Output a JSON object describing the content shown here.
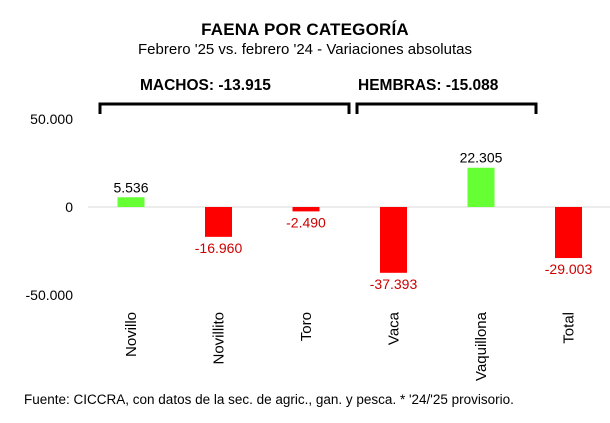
{
  "chart_data": {
    "type": "bar",
    "title": "FAENA POR CATEGORÍA",
    "subtitle": "Febrero '25 vs. febrero '24 - Variaciones absolutas",
    "categories": [
      "Novillo",
      "Novillito",
      "Toro",
      "Vaca",
      "Vaquillona",
      "Total"
    ],
    "values": [
      5536,
      -16960,
      -2490,
      -37393,
      22305,
      -29003
    ],
    "value_labels": [
      "5.536",
      "-16.960",
      "-2.490",
      "-37.393",
      "22.305",
      "-29.003"
    ],
    "y_ticks": [
      50000,
      0,
      -50000
    ],
    "y_tick_labels": [
      "50.000",
      "0",
      "-50.000"
    ],
    "ylim": [
      -50000,
      50000
    ],
    "grid": false,
    "legend": "none",
    "groups": [
      {
        "label": "MACHOS: -13.915",
        "categories": [
          "Novillo",
          "Novillito",
          "Toro"
        ]
      },
      {
        "label": "HEMBRAS: -15.088",
        "categories": [
          "Vaca",
          "Vaquillona"
        ]
      }
    ],
    "colors": {
      "positive": "#66ff33",
      "negative": "#ff0000",
      "negative_label": "#cc0000"
    }
  },
  "source": "Fuente: CICCRA, con datos de la sec. de agric., gan. y pesca. * '24/'25 provisorio."
}
